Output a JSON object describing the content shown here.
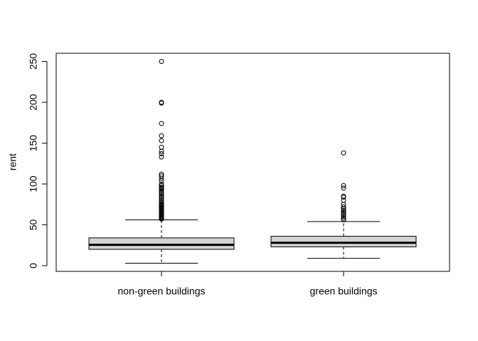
{
  "chart_data": {
    "type": "boxplot",
    "title": "",
    "xlabel": "",
    "ylabel": "rent",
    "ylim": [
      -7,
      260
    ],
    "yticks": [
      0,
      50,
      100,
      150,
      200,
      250
    ],
    "grid": false,
    "legend": "none",
    "colors": {
      "box_fill": "#d3d3d3",
      "stroke": "#000000"
    },
    "categories": [
      "non-green buildings",
      "green buildings"
    ],
    "boxes": [
      {
        "name": "non-green buildings",
        "whisker_low": 3,
        "q1": 20,
        "median": 25.5,
        "q3": 34,
        "whisker_high": 56,
        "outliers": [
          57,
          58,
          59,
          60,
          61,
          62,
          63,
          64,
          65,
          66,
          67,
          68,
          69,
          70,
          71,
          72,
          73,
          74,
          75,
          76,
          78,
          80,
          82,
          84,
          86,
          88,
          90,
          92,
          94,
          95,
          96,
          98,
          100,
          104,
          107,
          110,
          112,
          133,
          137,
          140,
          145,
          153,
          159,
          174,
          199,
          200,
          250
        ]
      },
      {
        "name": "green buildings",
        "whisker_low": 9,
        "q1": 23,
        "median": 28,
        "q3": 36,
        "whisker_high": 54,
        "outliers": [
          56,
          58,
          60,
          62,
          64,
          66,
          68,
          70,
          72,
          75,
          80,
          84,
          85,
          95,
          98,
          138
        ]
      }
    ]
  }
}
